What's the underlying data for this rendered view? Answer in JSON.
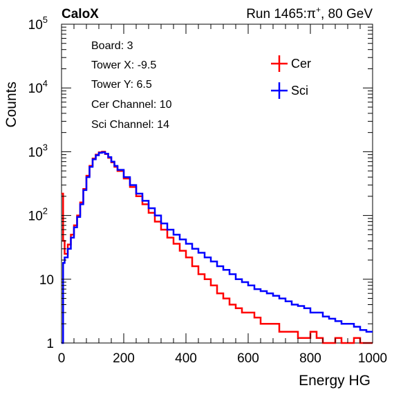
{
  "header": {
    "experiment": "CaloX",
    "run_label": "Run 1465:",
    "particle": "π",
    "particle_charge": "+",
    "energy": ", 80 GeV"
  },
  "info": {
    "board": "Board: 3",
    "tower_x": "Tower X: -9.5",
    "tower_y": "Tower Y: 6.5",
    "cer_channel": "Cer Channel: 10",
    "sci_channel": "Sci Channel: 14"
  },
  "chart_data": {
    "type": "line",
    "xlabel": "Energy HG",
    "ylabel": "Counts",
    "xlim": [
      0,
      1000
    ],
    "ylim": [
      1,
      100000
    ],
    "yscale": "log",
    "x_ticks": [
      0,
      200,
      400,
      600,
      800,
      1000
    ],
    "y_ticks": [
      {
        "value": 1,
        "base": "1",
        "exp": ""
      },
      {
        "value": 10,
        "base": "10",
        "exp": ""
      },
      {
        "value": 100,
        "base": "10",
        "exp": "2"
      },
      {
        "value": 1000,
        "base": "10",
        "exp": "3"
      },
      {
        "value": 10000,
        "base": "10",
        "exp": "4"
      },
      {
        "value": 100000,
        "base": "10",
        "exp": "5"
      }
    ],
    "grid": false,
    "legend_position": "top-right",
    "series": [
      {
        "name": "Cer",
        "color": "#ff0000",
        "x": [
          0,
          5,
          10,
          20,
          30,
          40,
          50,
          60,
          70,
          80,
          90,
          100,
          110,
          120,
          130,
          140,
          150,
          160,
          170,
          180,
          200,
          220,
          240,
          260,
          280,
          300,
          320,
          340,
          360,
          380,
          400,
          420,
          440,
          460,
          480,
          500,
          520,
          540,
          560,
          580,
          600,
          620,
          640,
          660,
          680,
          700,
          720,
          740,
          760,
          780,
          800,
          820,
          840,
          860,
          880,
          900,
          920,
          940,
          960,
          980,
          1000
        ],
        "values": [
          220,
          40,
          25,
          35,
          50,
          70,
          100,
          160,
          260,
          420,
          600,
          780,
          900,
          980,
          1000,
          920,
          800,
          680,
          580,
          500,
          380,
          280,
          200,
          150,
          110,
          80,
          60,
          45,
          36,
          28,
          22,
          16,
          12,
          10,
          8,
          6,
          5,
          4,
          3.5,
          3,
          3,
          2.5,
          2,
          2,
          2,
          1.5,
          1.5,
          1.5,
          1.2,
          1.2,
          1.5,
          1.2,
          1,
          1,
          1.2,
          1,
          1,
          1.2,
          1,
          1,
          1
        ]
      },
      {
        "name": "Sci",
        "color": "#0000ff",
        "x": [
          0,
          5,
          10,
          20,
          30,
          40,
          50,
          60,
          70,
          80,
          90,
          100,
          110,
          120,
          130,
          140,
          150,
          160,
          170,
          180,
          200,
          220,
          240,
          260,
          280,
          300,
          320,
          340,
          360,
          380,
          400,
          420,
          440,
          460,
          480,
          500,
          520,
          540,
          560,
          580,
          600,
          620,
          640,
          660,
          680,
          700,
          720,
          740,
          760,
          780,
          800,
          820,
          840,
          860,
          880,
          900,
          920,
          940,
          960,
          980,
          1000
        ],
        "values": [
          1,
          18,
          22,
          30,
          45,
          65,
          95,
          150,
          250,
          400,
          580,
          760,
          880,
          960,
          980,
          930,
          820,
          700,
          600,
          520,
          400,
          300,
          220,
          170,
          130,
          100,
          75,
          60,
          50,
          42,
          36,
          30,
          26,
          22,
          19,
          16,
          14,
          12,
          10,
          9,
          8,
          7,
          6.5,
          6,
          5.5,
          5,
          4.5,
          4,
          3.8,
          3.5,
          3,
          3,
          2.6,
          2.4,
          2.2,
          2,
          2,
          1.8,
          1.6,
          1.5,
          1.5
        ]
      }
    ]
  }
}
